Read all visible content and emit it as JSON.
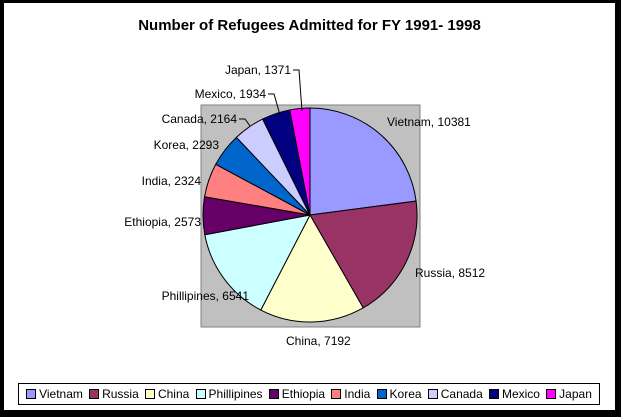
{
  "chart_data": {
    "type": "pie",
    "title": "Number of Refugees Admitted for FY 1991- 1998",
    "categories": [
      "Vietnam",
      "Russia",
      "China",
      "Phillipines",
      "Ethiopia",
      "India",
      "Korea",
      "Canada",
      "Mexico",
      "Japan"
    ],
    "values": [
      10381,
      8512,
      7192,
      6541,
      2573,
      2324,
      2293,
      2164,
      1934,
      1371
    ],
    "labels": [
      "Vietnam, 10381",
      "Russia, 8512",
      "China, 7192",
      "Phillipines, 6541",
      "Ethiopia, 2573",
      "India, 2324",
      "Korea, 2293",
      "Canada, 2164",
      "Mexico, 1934",
      "Japan, 1371"
    ],
    "colors": [
      "#9999FF",
      "#993366",
      "#FFFFCC",
      "#CCFFFF",
      "#660066",
      "#FF8080",
      "#0066CC",
      "#CCCCFF",
      "#000080",
      "#FF00FF"
    ],
    "plot_area_color": "#C0C0C0",
    "legend_position": "bottom",
    "start_angle": "12 o'clock",
    "direction": "clockwise"
  }
}
